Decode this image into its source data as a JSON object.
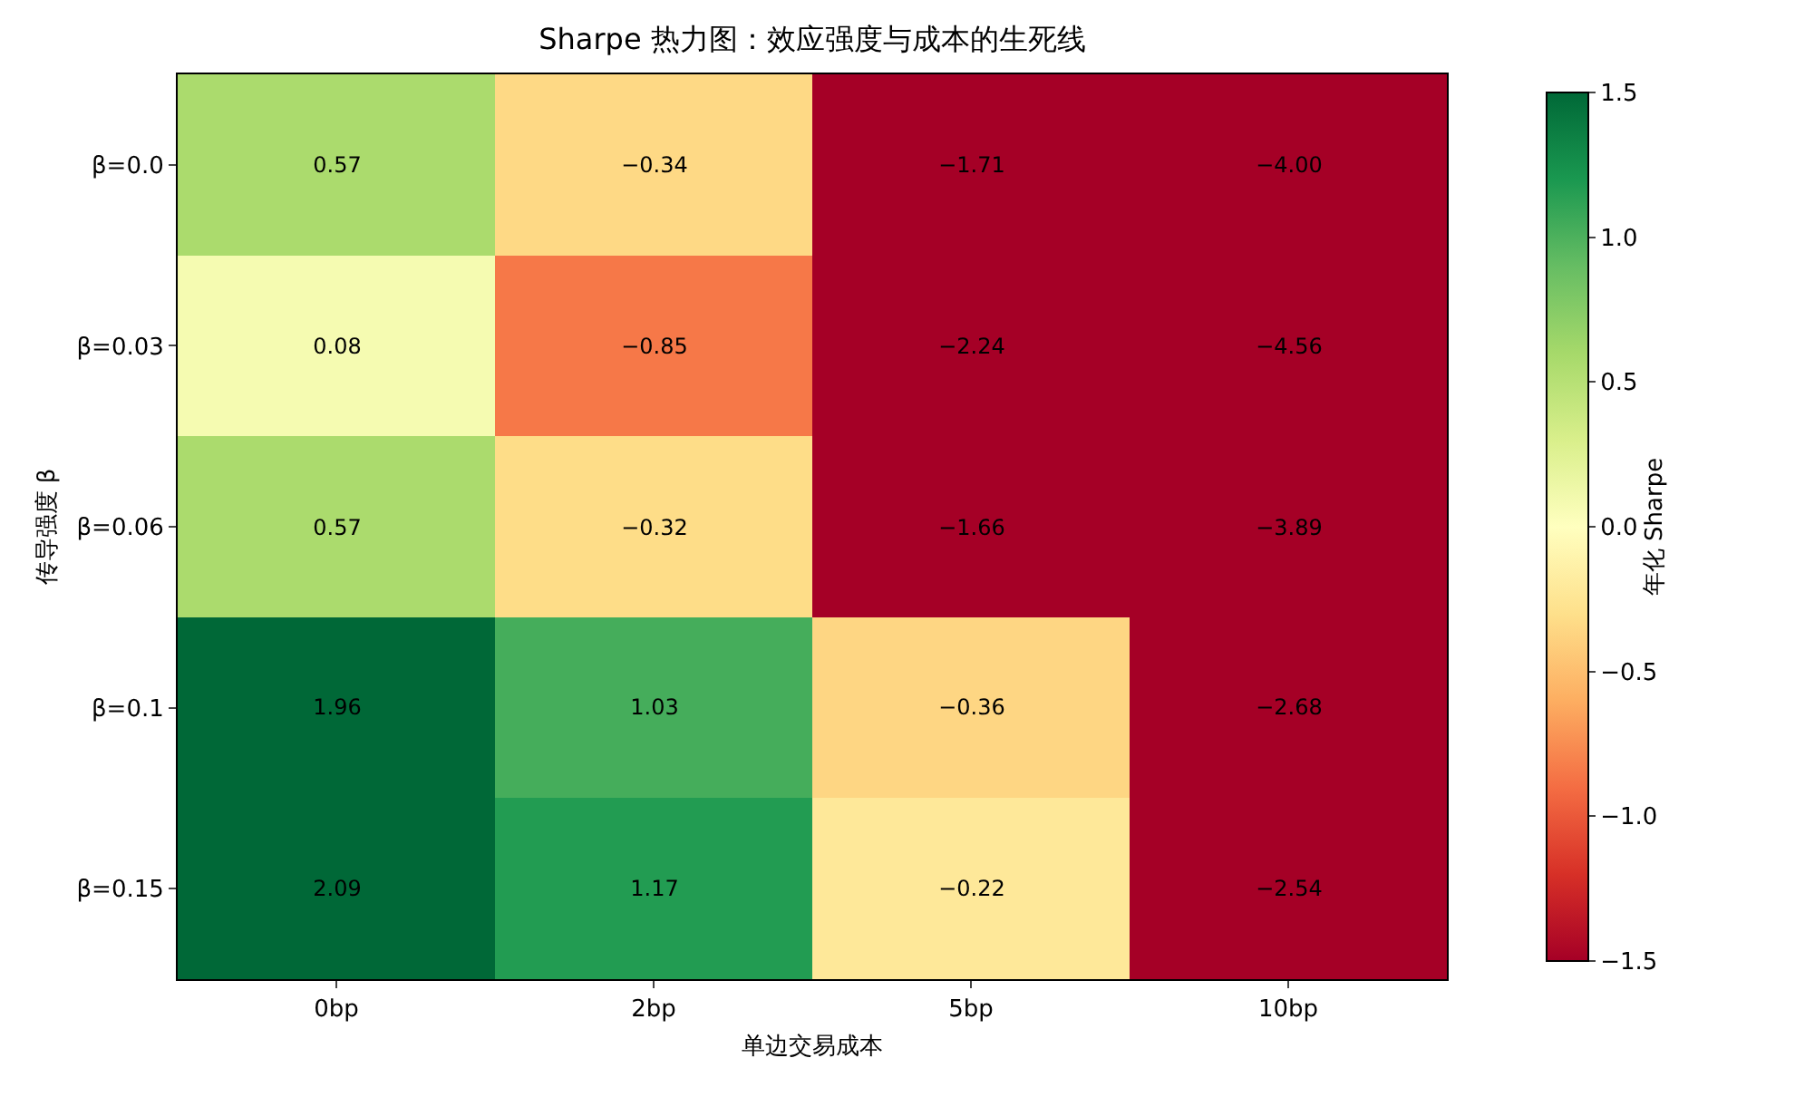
{
  "chart_data": {
    "type": "heatmap",
    "title": "Sharpe 热力图：效应强度与成本的生死线",
    "xlabel": "单边交易成本",
    "ylabel": "传导强度 β",
    "clabel": "年化 Sharpe",
    "categories": [
      "0bp",
      "2bp",
      "5bp",
      "10bp"
    ],
    "y_categories": [
      "β=0.0",
      "β=0.03",
      "β=0.06",
      "β=0.1",
      "β=0.15"
    ],
    "cells": [
      [
        0.57,
        -0.34,
        -1.71,
        -4.0
      ],
      [
        0.08,
        -0.85,
        -2.24,
        -4.56
      ],
      [
        0.57,
        -0.32,
        -1.66,
        -3.89
      ],
      [
        1.96,
        1.03,
        -0.36,
        -2.68
      ],
      [
        2.09,
        1.17,
        -0.22,
        -2.54
      ]
    ],
    "cell_labels": [
      [
        "0.57",
        "−0.34",
        "−1.71",
        "−4.00"
      ],
      [
        "0.08",
        "−0.85",
        "−2.24",
        "−4.56"
      ],
      [
        "0.57",
        "−0.32",
        "−1.66",
        "−3.89"
      ],
      [
        "1.96",
        "1.03",
        "−0.36",
        "−2.68"
      ],
      [
        "2.09",
        "1.17",
        "−0.22",
        "−2.54"
      ]
    ],
    "clim": [
      -1.5,
      1.5
    ],
    "cticks": [
      {
        "value": -1.5,
        "label": "−1.5"
      },
      {
        "value": -1.0,
        "label": "−1.0"
      },
      {
        "value": -0.5,
        "label": "−0.5"
      },
      {
        "value": 0,
        "label": "0.0"
      },
      {
        "value": 0.5,
        "label": "0.5"
      },
      {
        "value": 1.0,
        "label": "1.0"
      },
      {
        "value": 1.5,
        "label": "1.5"
      }
    ]
  }
}
